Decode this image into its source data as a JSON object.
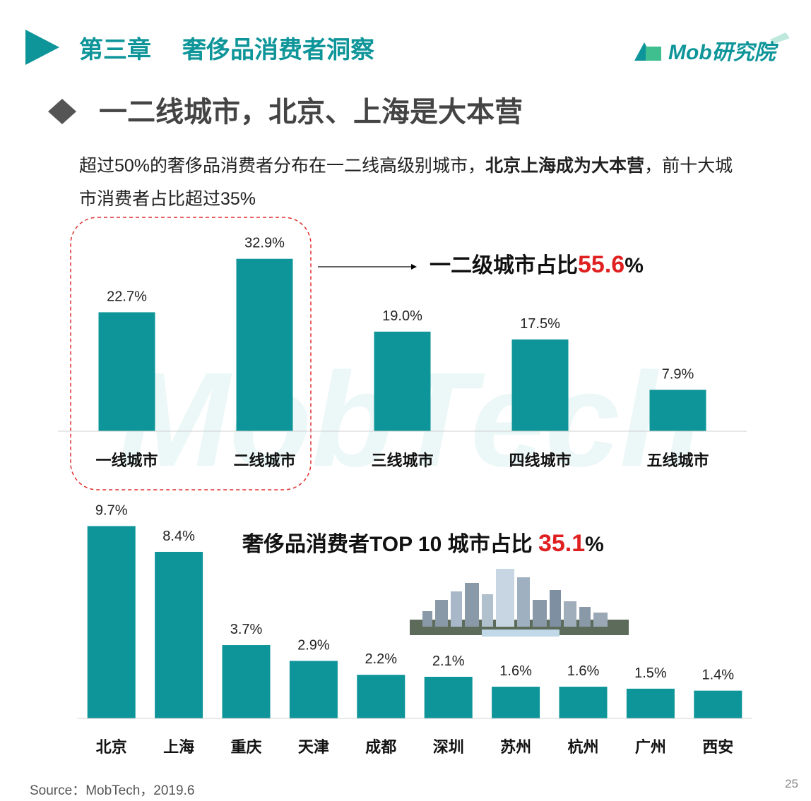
{
  "header": {
    "chapter": "第三章",
    "chapter_title": "奢侈品消费者洞察",
    "logo": "Mob研究院",
    "heading": "一二线城市，北京、上海是大本营"
  },
  "description": {
    "part1": "超过50%的奢侈品消费者分布在一二线高级别城市，",
    "bold": "北京上海成为大本营",
    "part2": "，前十大城市消费者占比超过35%"
  },
  "watermark": "MobTech",
  "chart_data": [
    {
      "type": "bar",
      "categories": [
        "一线城市",
        "二线城市",
        "三线城市",
        "四线城市",
        "五线城市"
      ],
      "values": [
        22.7,
        32.9,
        19.0,
        17.5,
        7.9
      ],
      "value_labels": [
        "22.7%",
        "32.9%",
        "19.0%",
        "17.5%",
        "7.9%"
      ],
      "color": "#0e9599",
      "ylim": [
        0,
        40
      ],
      "annotation": {
        "prefix": "一二级城市占比",
        "highlight": "55.6",
        "suffix": "%"
      }
    },
    {
      "type": "bar",
      "categories": [
        "北京",
        "上海",
        "重庆",
        "天津",
        "成都",
        "深圳",
        "苏州",
        "杭州",
        "广州",
        "西安"
      ],
      "values": [
        9.7,
        8.4,
        3.7,
        2.9,
        2.2,
        2.1,
        1.6,
        1.6,
        1.5,
        1.4
      ],
      "value_labels": [
        "9.7%",
        "8.4%",
        "3.7%",
        "2.9%",
        "2.2%",
        "2.1%",
        "1.6%",
        "1.6%",
        "1.5%",
        "1.4%"
      ],
      "color": "#0e9599",
      "ylim": [
        0,
        10
      ],
      "annotation": {
        "prefix": "奢侈品消费者TOP 10 城市占比 ",
        "highlight": "35.1",
        "suffix": "%"
      }
    }
  ],
  "source": "Source：MobTech，2019.6",
  "page_number": "25"
}
